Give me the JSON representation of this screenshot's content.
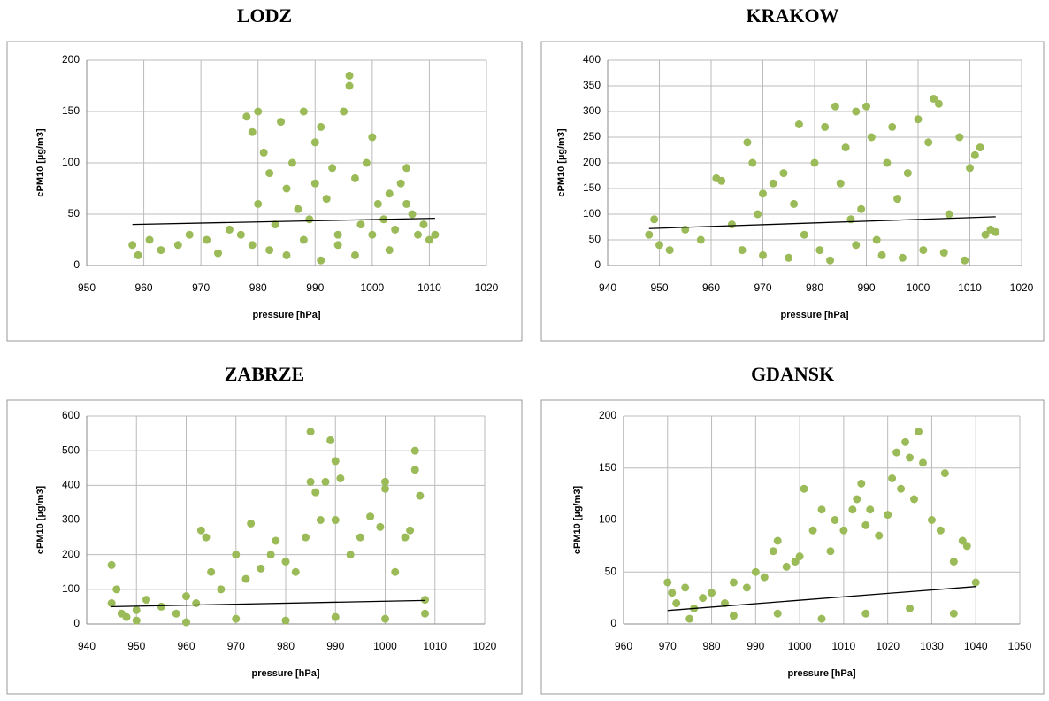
{
  "chart_data": [
    {
      "type": "scatter",
      "title": "LODZ",
      "xlabel": "pressure [hPa]",
      "ylabel": "cPM10 [µg/m3]",
      "xlim": [
        950,
        1020
      ],
      "xticks": [
        950,
        960,
        970,
        980,
        990,
        1000,
        1010,
        1020
      ],
      "ylim": [
        0,
        200
      ],
      "yticks": [
        0,
        50,
        100,
        150,
        200
      ],
      "grid": true,
      "series": [
        {
          "color": "#9bbb59",
          "x": [
            958,
            959,
            961,
            963,
            966,
            968,
            971,
            973,
            975,
            977,
            978,
            979,
            980,
            980,
            981,
            982,
            983,
            984,
            985,
            986,
            987,
            988,
            989,
            990,
            990,
            991,
            992,
            993,
            994,
            995,
            996,
            996,
            997,
            998,
            999,
            1000,
            1001,
            1002,
            1003,
            1004,
            1005,
            1006,
            1007,
            1008,
            1009,
            1010,
            1011,
            979,
            982,
            985,
            988,
            991,
            994,
            997,
            1000,
            1003,
            1006
          ],
          "y": [
            20,
            10,
            25,
            15,
            20,
            30,
            25,
            12,
            35,
            30,
            145,
            130,
            150,
            60,
            110,
            90,
            40,
            140,
            75,
            100,
            55,
            150,
            45,
            120,
            80,
            135,
            65,
            95,
            30,
            150,
            185,
            175,
            85,
            40,
            100,
            125,
            60,
            45,
            70,
            35,
            80,
            95,
            50,
            30,
            40,
            25,
            30,
            20,
            15,
            10,
            25,
            5,
            20,
            10,
            30,
            15,
            60
          ]
        }
      ],
      "trendline": {
        "color": "#000000",
        "x": [
          958,
          1011
        ],
        "y": [
          40,
          46
        ]
      }
    },
    {
      "type": "scatter",
      "title": "KRAKOW",
      "xlabel": "pressure [hPa]",
      "ylabel": "cPM10 [µg/m3]",
      "xlim": [
        940,
        1020
      ],
      "xticks": [
        940,
        950,
        960,
        970,
        980,
        990,
        1000,
        1010,
        1020
      ],
      "ylim": [
        0,
        400
      ],
      "yticks": [
        0,
        50,
        100,
        150,
        200,
        250,
        300,
        350,
        400
      ],
      "grid": true,
      "series": [
        {
          "color": "#9bbb59",
          "x": [
            948,
            949,
            950,
            952,
            955,
            958,
            961,
            962,
            964,
            966,
            967,
            968,
            969,
            970,
            972,
            974,
            976,
            977,
            978,
            980,
            981,
            982,
            984,
            985,
            986,
            987,
            988,
            989,
            990,
            991,
            992,
            994,
            995,
            996,
            998,
            1000,
            1002,
            1003,
            1004,
            1006,
            1008,
            1010,
            1011,
            1012,
            1013,
            1014,
            1015,
            970,
            975,
            983,
            988,
            993,
            997,
            1001,
            1005,
            1009
          ],
          "y": [
            60,
            90,
            40,
            30,
            70,
            50,
            170,
            165,
            80,
            30,
            240,
            200,
            100,
            140,
            160,
            180,
            120,
            275,
            60,
            200,
            30,
            270,
            310,
            160,
            230,
            90,
            300,
            110,
            310,
            250,
            50,
            200,
            270,
            130,
            180,
            285,
            240,
            325,
            315,
            100,
            250,
            190,
            215,
            230,
            60,
            70,
            65,
            20,
            15,
            10,
            40,
            20,
            15,
            30,
            25,
            10
          ]
        }
      ],
      "trendline": {
        "color": "#000000",
        "x": [
          948,
          1015
        ],
        "y": [
          72,
          95
        ]
      }
    },
    {
      "type": "scatter",
      "title": "ZABRZE",
      "xlabel": "pressure [hPa]",
      "ylabel": "cPM10 [µg/m3]",
      "xlim": [
        940,
        1020
      ],
      "xticks": [
        940,
        950,
        960,
        970,
        980,
        990,
        1000,
        1010,
        1020
      ],
      "ylim": [
        0,
        600
      ],
      "yticks": [
        0,
        100,
        200,
        300,
        400,
        500,
        600
      ],
      "grid": true,
      "series": [
        {
          "color": "#9bbb59",
          "x": [
            945,
            945,
            946,
            947,
            948,
            950,
            952,
            955,
            958,
            960,
            962,
            963,
            964,
            965,
            967,
            970,
            972,
            973,
            975,
            977,
            978,
            980,
            982,
            984,
            985,
            985,
            986,
            987,
            988,
            989,
            990,
            990,
            991,
            993,
            995,
            997,
            999,
            1000,
            1000,
            1002,
            1004,
            1005,
            1006,
            1006,
            1007,
            1008,
            1008,
            950,
            960,
            970,
            980,
            990,
            1000
          ],
          "y": [
            170,
            60,
            100,
            30,
            20,
            40,
            70,
            50,
            30,
            80,
            60,
            270,
            250,
            150,
            100,
            200,
            130,
            290,
            160,
            200,
            240,
            180,
            150,
            250,
            410,
            555,
            380,
            300,
            410,
            530,
            470,
            300,
            420,
            200,
            250,
            310,
            280,
            410,
            390,
            150,
            250,
            270,
            500,
            445,
            370,
            70,
            30,
            10,
            5,
            15,
            10,
            20,
            15
          ]
        }
      ],
      "trendline": {
        "color": "#000000",
        "x": [
          945,
          1008
        ],
        "y": [
          50,
          68
        ]
      }
    },
    {
      "type": "scatter",
      "title": "GDANSK",
      "xlabel": "pressure [hPa]",
      "ylabel": "cPM10 [µg/m3]",
      "xlim": [
        960,
        1050
      ],
      "xticks": [
        960,
        970,
        980,
        990,
        1000,
        1010,
        1020,
        1030,
        1040,
        1050
      ],
      "ylim": [
        0,
        200
      ],
      "yticks": [
        0,
        50,
        100,
        150,
        200
      ],
      "grid": true,
      "series": [
        {
          "color": "#9bbb59",
          "x": [
            970,
            971,
            972,
            974,
            976,
            978,
            980,
            983,
            985,
            988,
            990,
            992,
            994,
            995,
            997,
            999,
            1000,
            1001,
            1003,
            1005,
            1007,
            1008,
            1010,
            1012,
            1013,
            1014,
            1015,
            1016,
            1018,
            1020,
            1021,
            1022,
            1023,
            1024,
            1025,
            1026,
            1027,
            1028,
            1030,
            1032,
            1033,
            1035,
            1037,
            1038,
            1040,
            975,
            985,
            995,
            1005,
            1015,
            1025,
            1035
          ],
          "y": [
            40,
            30,
            20,
            35,
            15,
            25,
            30,
            20,
            40,
            35,
            50,
            45,
            70,
            80,
            55,
            60,
            65,
            130,
            90,
            110,
            70,
            100,
            90,
            110,
            120,
            135,
            95,
            110,
            85,
            105,
            140,
            165,
            130,
            175,
            160,
            120,
            185,
            155,
            100,
            90,
            145,
            60,
            80,
            75,
            40,
            5,
            8,
            10,
            5,
            10,
            15,
            10
          ]
        }
      ],
      "trendline": {
        "color": "#000000",
        "x": [
          970,
          1040
        ],
        "y": [
          13,
          36
        ]
      }
    }
  ]
}
